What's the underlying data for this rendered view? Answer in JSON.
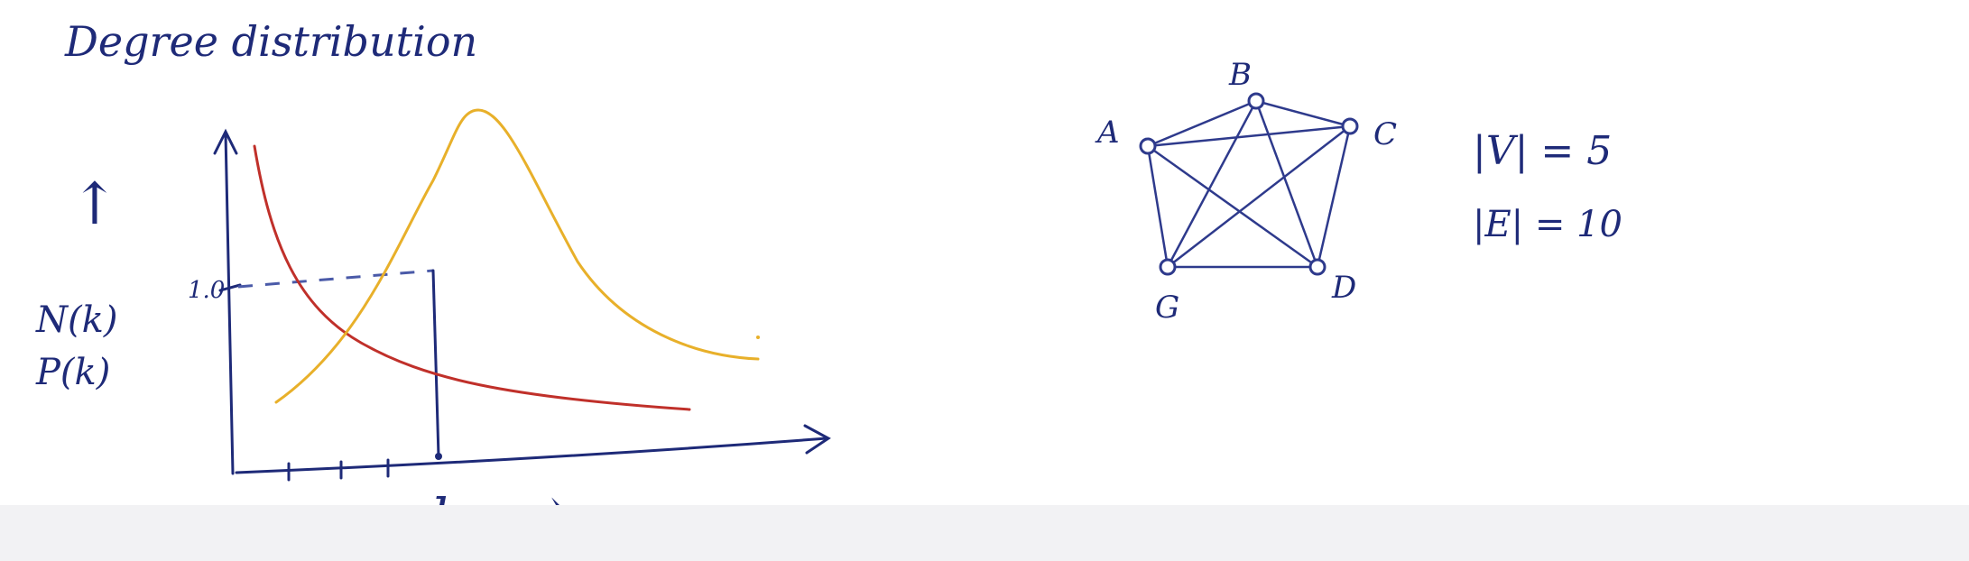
{
  "title": "Degree distribution",
  "plot": {
    "y_labels": [
      "N(k)",
      "P(k)"
    ],
    "y_arrow": "↑",
    "tick_value": "1.0",
    "x_label": "k",
    "x_arrow": "⟶",
    "colors": {
      "ink": "#1e2a78",
      "red_curve": "#c0302a",
      "yellow_curve": "#e8b02a",
      "dashed": "#4a5aa8"
    }
  },
  "graph": {
    "nodes": [
      {
        "id": "A",
        "label": "A"
      },
      {
        "id": "B",
        "label": "B"
      },
      {
        "id": "C",
        "label": "C"
      },
      {
        "id": "D",
        "label": "D"
      },
      {
        "id": "G",
        "label": "G"
      }
    ],
    "edges": [
      [
        "A",
        "B"
      ],
      [
        "A",
        "C"
      ],
      [
        "A",
        "D"
      ],
      [
        "A",
        "G"
      ],
      [
        "B",
        "C"
      ],
      [
        "B",
        "D"
      ],
      [
        "B",
        "G"
      ],
      [
        "C",
        "D"
      ],
      [
        "C",
        "G"
      ],
      [
        "D",
        "G"
      ]
    ],
    "vertex_count": "|V| = 5",
    "edge_count": "|E| = 10"
  }
}
